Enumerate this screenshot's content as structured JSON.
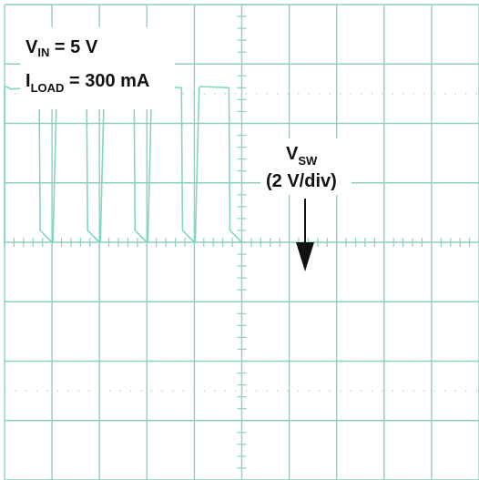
{
  "conditions": {
    "vin": {
      "main": "V",
      "sub": "IN",
      "rest": " = 5 V"
    },
    "iload": {
      "main": "I",
      "sub": "LOAD",
      "rest": " = 300 mA"
    }
  },
  "channel": {
    "name": {
      "main": "V",
      "sub": "SW"
    },
    "scale": "(2 V/div)"
  },
  "colors": {
    "grid": "#8ecfc0",
    "trace": "#7fd6c4",
    "text": "#111111"
  },
  "chart_data": {
    "type": "line",
    "x_divisions": 10,
    "y_divisions": 8,
    "series": [
      {
        "x": [
          0,
          0.0,
          0.01,
          0.09,
          0.11,
          0.73,
          0.75,
          1.0,
          1.02,
          1.1,
          1.12,
          1.73,
          1.75,
          2.0,
          2.02,
          2.1,
          2.12,
          2.73,
          2.75,
          3.0,
          3.02,
          3.1,
          3.12,
          3.73,
          3.75,
          4.0,
          4.02,
          4.1,
          4.12,
          4.73,
          4.75,
          5.0
        ],
        "y": [
          0,
          2.58,
          2.62,
          2.6,
          2.58,
          2.6,
          0.2,
          0.0,
          0.0,
          2.58,
          2.62,
          2.6,
          0.2,
          0.0,
          0.0,
          2.58,
          2.62,
          2.6,
          0.2,
          0.0,
          0.0,
          2.58,
          2.62,
          2.6,
          0.2,
          0.0,
          0.0,
          2.58,
          2.62,
          2.6,
          0.2,
          0.0
        ]
      }
    ],
    "xlim": [
      0,
      10
    ],
    "ylim": [
      -4,
      4
    ],
    "grid": true
  }
}
